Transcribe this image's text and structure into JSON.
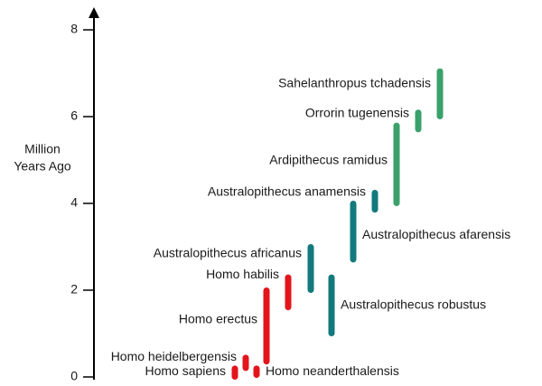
{
  "chart_data": {
    "type": "range",
    "y_label": [
      "Million",
      "Years Ago"
    ],
    "categories": [
      "Homo sapiens",
      "Homo heidelbergensis",
      "Homo neanderthalensis",
      "Homo erectus",
      "Homo habilis",
      "Australopithecus africanus",
      "Australopithecus robustus",
      "Australopithecus afarensis",
      "Australopithecus anamensis",
      "Ardipithecus ramidus",
      "Orrorin tugenensis",
      "Sahelanthropus tchadensis"
    ],
    "low": [
      0,
      0.2,
      0.04,
      0.35,
      1.6,
      2.0,
      1.0,
      2.7,
      3.85,
      4.0,
      5.7,
      6.0
    ],
    "high": [
      0.2,
      0.45,
      0.2,
      2.0,
      2.3,
      3.0,
      2.3,
      4.0,
      4.25,
      5.8,
      6.1,
      7.05
    ],
    "colors": [
      "#e3141b",
      "#e3141b",
      "#e3141b",
      "#e3141b",
      "#e3141b",
      "#12797d",
      "#12797d",
      "#12797d",
      "#12797d",
      "#3aa16b",
      "#3aa16b",
      "#3aa16b"
    ],
    "ylim": [
      0,
      8
    ],
    "yticks": [
      0,
      2,
      4,
      6,
      8
    ]
  }
}
